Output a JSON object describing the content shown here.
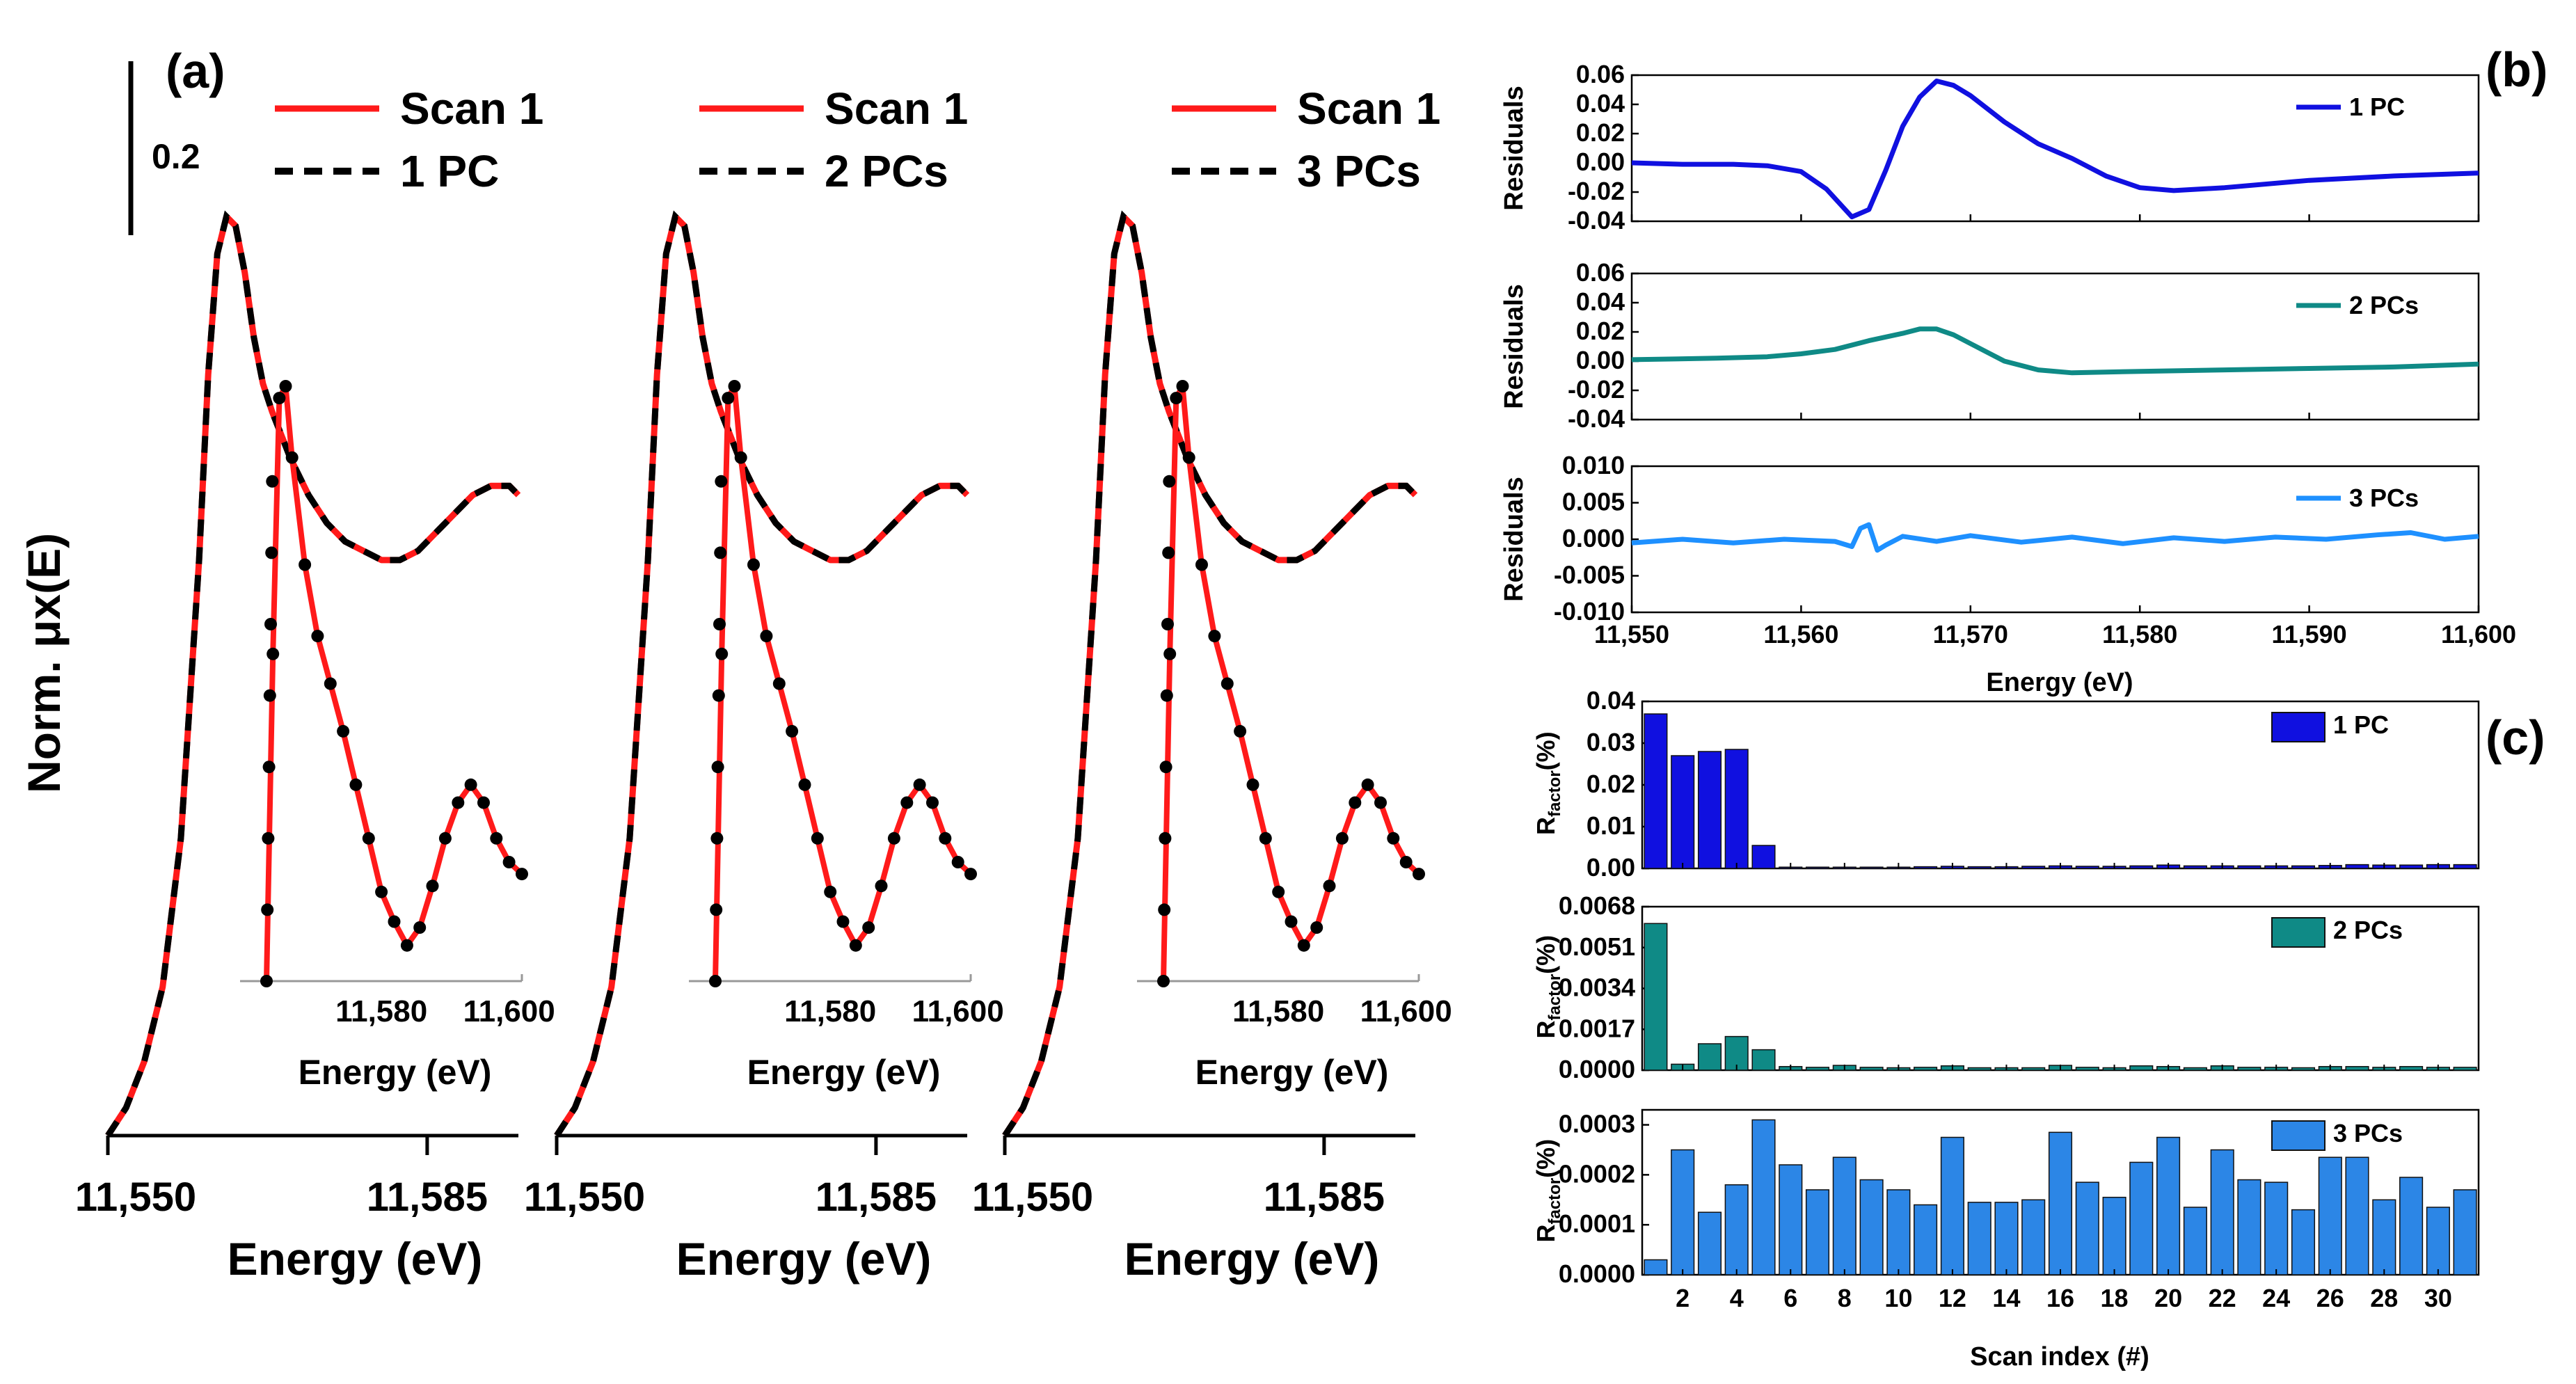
{
  "chart_data": [
    {
      "panel": "(a)",
      "type": "line",
      "ylabel": "Norm. μx(E)",
      "xlabel": "Energy (eV)",
      "scale_bar_label": "0.2",
      "xlim": [
        11550,
        11595
      ],
      "x_ticks": [
        "11,550",
        "11,585"
      ],
      "inset": {
        "xlabel": "Energy (eV)",
        "x_ticks": [
          "11,580",
          "11,600"
        ],
        "xlim": [
          11562,
          11602
        ]
      },
      "subplots": [
        {
          "legend": [
            {
              "name": "Scan 1",
              "style": "red-solid"
            },
            {
              "name": "1 PC",
              "style": "black-dashed"
            }
          ]
        },
        {
          "legend": [
            {
              "name": "Scan 1",
              "style": "red-solid"
            },
            {
              "name": "2 PCs",
              "style": "black-dashed"
            }
          ]
        },
        {
          "legend": [
            {
              "name": "Scan 1",
              "style": "red-solid"
            },
            {
              "name": "3 PCs",
              "style": "black-dashed"
            }
          ]
        }
      ],
      "spectrum": {
        "x": [
          11550,
          11552,
          11554,
          11556,
          11558,
          11560,
          11561,
          11562,
          11563,
          11564,
          11565,
          11566,
          11567,
          11568,
          11570,
          11572,
          11574,
          11576,
          11578,
          11580,
          11582,
          11584,
          11586,
          11588,
          11590,
          11592,
          11594,
          11595
        ],
        "y": [
          0.0,
          0.03,
          0.08,
          0.16,
          0.32,
          0.62,
          0.82,
          0.95,
          0.99,
          0.98,
          0.93,
          0.86,
          0.81,
          0.78,
          0.73,
          0.69,
          0.66,
          0.64,
          0.63,
          0.62,
          0.62,
          0.63,
          0.65,
          0.67,
          0.69,
          0.7,
          0.7,
          0.69
        ]
      }
    },
    {
      "panel": "(b)",
      "type": "line",
      "xlabel": "Energy (eV)",
      "ylabel": "Residuals",
      "xlim": [
        11550,
        11600
      ],
      "x_ticks": [
        "11,550",
        "11,560",
        "11,570",
        "11,580",
        "11,590",
        "11,600"
      ],
      "subplots": [
        {
          "name": "1 PC",
          "color": "#1010e0",
          "ylim": [
            -0.04,
            0.06
          ],
          "y_ticks": [
            "0.06",
            "0.04",
            "0.02",
            "0.00",
            "-0.02",
            "-0.04"
          ],
          "x": [
            11550,
            11553,
            11556,
            11558,
            11560,
            11561.5,
            11563,
            11564,
            11565,
            11566,
            11567,
            11568,
            11569,
            11570,
            11572,
            11574,
            11576,
            11578,
            11580,
            11582,
            11585,
            11590,
            11595,
            11600
          ],
          "y": [
            0.0,
            -0.001,
            -0.001,
            -0.002,
            -0.006,
            -0.018,
            -0.037,
            -0.032,
            -0.005,
            0.025,
            0.045,
            0.056,
            0.053,
            0.046,
            0.028,
            0.013,
            0.003,
            -0.009,
            -0.017,
            -0.019,
            -0.017,
            -0.012,
            -0.009,
            -0.007
          ]
        },
        {
          "name": "2 PCs",
          "color": "#0f8a86",
          "ylim": [
            -0.04,
            0.06
          ],
          "y_ticks": [
            "0.06",
            "0.04",
            "0.02",
            "0.00",
            "-0.02",
            "-0.04"
          ],
          "x": [
            11550,
            11555,
            11558,
            11560,
            11562,
            11564,
            11566,
            11567,
            11568,
            11569,
            11570,
            11572,
            11574,
            11576,
            11580,
            11585,
            11590,
            11595,
            11600
          ],
          "y": [
            0.001,
            0.002,
            0.003,
            0.005,
            0.008,
            0.014,
            0.019,
            0.022,
            0.022,
            0.018,
            0.012,
            0.0,
            -0.006,
            -0.008,
            -0.007,
            -0.006,
            -0.005,
            -0.004,
            -0.002
          ]
        },
        {
          "name": "3 PCs",
          "color": "#1e90ff",
          "ylim": [
            -0.01,
            0.01
          ],
          "y_ticks": [
            "0.010",
            "0.005",
            "0.000",
            "-0.005",
            "-0.010"
          ],
          "x": [
            11550,
            11553,
            11556,
            11559,
            11562,
            11563,
            11563.5,
            11564,
            11564.5,
            11565,
            11566,
            11568,
            11570,
            11573,
            11576,
            11579,
            11582,
            11585,
            11588,
            11591,
            11594,
            11596,
            11598,
            11600
          ],
          "y": [
            -0.0005,
            0.0,
            -0.0005,
            0.0,
            -0.0003,
            -0.001,
            0.0015,
            0.002,
            -0.0015,
            -0.0008,
            0.0004,
            -0.0003,
            0.0005,
            -0.0004,
            0.0003,
            -0.0006,
            0.0002,
            -0.0003,
            0.0003,
            0.0,
            0.0006,
            0.0009,
            0.0,
            0.0004
          ]
        }
      ]
    },
    {
      "panel": "(c)",
      "type": "bar",
      "xlabel": "Scan index (#)",
      "ylabel": "R_factor (%)",
      "ylabel_main": "R",
      "ylabel_sub": "factor",
      "ylabel_tail": "(%)",
      "categories": [
        1,
        2,
        3,
        4,
        5,
        6,
        7,
        8,
        9,
        10,
        11,
        12,
        13,
        14,
        15,
        16,
        17,
        18,
        19,
        20,
        21,
        22,
        23,
        24,
        25,
        26,
        27,
        28,
        29,
        30,
        31
      ],
      "x_ticks": [
        "2",
        "4",
        "6",
        "8",
        "10",
        "12",
        "14",
        "16",
        "18",
        "20",
        "22",
        "24",
        "26",
        "28",
        "30"
      ],
      "series": [
        {
          "name": "1 PC",
          "color": "#1010e0",
          "ylim": [
            0,
            0.04
          ],
          "y_ticks": [
            "0.04",
            "0.03",
            "0.02",
            "0.01",
            "0.00"
          ],
          "values": [
            0.037,
            0.027,
            0.028,
            0.0285,
            0.0055,
            0.0003,
            0.0003,
            0.0003,
            0.0003,
            0.0003,
            0.0004,
            0.0005,
            0.0004,
            0.0004,
            0.0005,
            0.0006,
            0.0005,
            0.0005,
            0.0006,
            0.0008,
            0.0006,
            0.0006,
            0.0006,
            0.0006,
            0.0006,
            0.0007,
            0.0009,
            0.0008,
            0.0008,
            0.0009,
            0.0009
          ]
        },
        {
          "name": "2 PCs",
          "color": "#0f8a86",
          "ylim": [
            0,
            0.0068
          ],
          "y_ticks": [
            "0.0068",
            "0.0051",
            "0.0034",
            "0.0017",
            "0.0000"
          ],
          "values": [
            0.0061,
            0.00025,
            0.0011,
            0.0014,
            0.00085,
            0.00015,
            0.00012,
            0.0002,
            0.00012,
            0.0001,
            0.00012,
            0.00018,
            0.0001,
            0.0001,
            0.0001,
            0.0002,
            0.00012,
            0.0001,
            0.00018,
            0.00015,
            0.0001,
            0.00018,
            0.00012,
            0.00012,
            0.0001,
            0.00015,
            0.00015,
            0.00012,
            0.00015,
            0.00012,
            0.00012
          ]
        },
        {
          "name": "3 PCs",
          "color": "#2c86e6",
          "ylim": [
            0,
            0.00033
          ],
          "y_ticks": [
            "0.0003",
            "0.0002",
            "0.0001",
            "0.0000"
          ],
          "values": [
            3e-05,
            0.00025,
            0.000125,
            0.00018,
            0.00031,
            0.00022,
            0.00017,
            0.000235,
            0.00019,
            0.00017,
            0.00014,
            0.000275,
            0.000145,
            0.000145,
            0.00015,
            0.000285,
            0.000185,
            0.000155,
            0.000225,
            0.000275,
            0.000135,
            0.00025,
            0.00019,
            0.000185,
            0.00013,
            0.000235,
            0.000235,
            0.00015,
            0.000195,
            0.000135,
            0.00017
          ]
        }
      ]
    }
  ]
}
